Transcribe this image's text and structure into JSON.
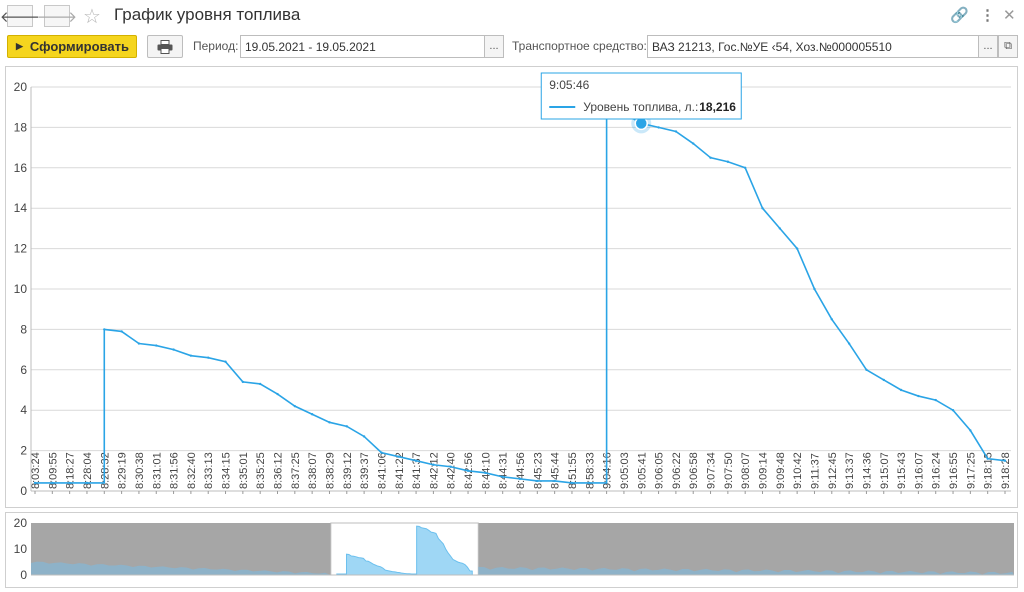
{
  "window": {
    "title": "График уровня топлива",
    "icons": {
      "back": "arrow-left-icon",
      "forward": "arrow-right-icon",
      "favorite": "star-icon",
      "link": "link-icon",
      "more": "more-vertical-icon",
      "expand": "expand-icon"
    }
  },
  "toolbar": {
    "generate_label": "Сформировать",
    "print_icon": "printer-icon",
    "period_label": "Период:",
    "period_value": "19.05.2021 - 19.05.2021",
    "period_select": "...",
    "vehicle_label": "Транспортное средство:",
    "vehicle_value": "ВАЗ 21213, Гос.№УЕ         ‹54, Хоз.№000005510",
    "vehicle_select": "...",
    "vehicle_open_icon": "open-window-icon"
  },
  "tooltip": {
    "time": "9:05:46",
    "series_label": "Уровень топлива, л.:",
    "value": "18,216"
  },
  "chart_data": {
    "type": "line",
    "series": [
      {
        "name": "Уровень топлива, л.",
        "color": "#2aa4e6"
      }
    ],
    "ylim": [
      0,
      20
    ],
    "yticks": [
      0,
      2,
      4,
      6,
      8,
      10,
      12,
      14,
      16,
      18,
      20
    ],
    "grid": true,
    "x_ticks": [
      "8:03:24",
      "8:09:55",
      "8:18:27",
      "8:28:04",
      "8:28:32",
      "8:29:19",
      "8:30:38",
      "8:31:01",
      "8:31:56",
      "8:32:40",
      "8:33:13",
      "8:34:15",
      "8:35:01",
      "8:35:25",
      "8:36:12",
      "8:37:25",
      "8:38:07",
      "8:38:29",
      "8:39:12",
      "8:39:37",
      "8:41:06",
      "8:41:22",
      "8:41:37",
      "8:42:12",
      "8:42:40",
      "8:42:56",
      "8:44:10",
      "8:44:31",
      "8:44:56",
      "8:45:23",
      "8:45:44",
      "8:51:55",
      "8:58:33",
      "9:04:16",
      "9:05:03",
      "9:05:41",
      "9:06:05",
      "9:06:22",
      "9:06:58",
      "9:07:34",
      "9:07:50",
      "9:08:07",
      "9:09:14",
      "9:09:48",
      "9:10:42",
      "9:11:37",
      "9:12:45",
      "9:13:37",
      "9:14:36",
      "9:15:07",
      "9:15:43",
      "9:16:07",
      "9:16:24",
      "9:16:55",
      "9:17:25",
      "9:18:15",
      "9:18:28"
    ],
    "y": [
      0.4,
      0.4,
      0.4,
      0.4,
      8.0,
      7.9,
      7.3,
      7.2,
      7.0,
      6.7,
      6.6,
      6.4,
      5.4,
      5.3,
      4.8,
      4.2,
      3.8,
      3.4,
      3.2,
      2.7,
      1.9,
      1.7,
      1.5,
      1.3,
      1.2,
      1.0,
      0.9,
      0.7,
      0.6,
      0.5,
      0.5,
      0.4,
      0.4,
      18.8,
      18.7,
      18.2,
      18.0,
      17.8,
      17.2,
      16.5,
      16.3,
      16.0,
      14.0,
      13.0,
      12.0,
      10.0,
      8.5,
      7.3,
      6.0,
      5.5,
      5.0,
      4.7,
      4.5,
      4.0,
      3.0,
      1.6,
      1.5
    ],
    "tooltip_index": 35
  },
  "navigator": {
    "yticks": [
      0,
      10,
      20
    ],
    "selection": [
      0.305,
      0.455
    ]
  }
}
